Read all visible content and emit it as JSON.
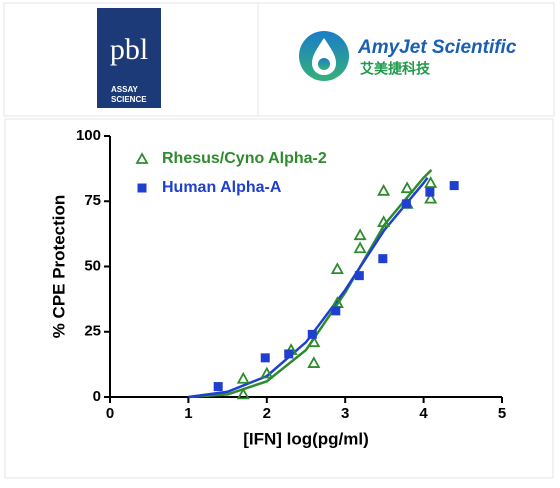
{
  "header": {
    "pbl_logo": {
      "name": "pbl",
      "lines": [
        "ASSAY",
        "SCIENCE"
      ]
    },
    "amyjet_logo": {
      "name": "AmyJet Scientific",
      "chinese": "艾美捷科技"
    }
  },
  "chart_data": {
    "type": "scatter",
    "xlabel": "[IFN] log(pg/ml)",
    "ylabel": "% CPE Protection",
    "xlim": [
      0,
      5
    ],
    "xticks": [
      0,
      1,
      2,
      3,
      4,
      5
    ],
    "ylim": [
      0,
      100
    ],
    "yticks": [
      0,
      25,
      50,
      75,
      100
    ],
    "legend": "upper left",
    "series": [
      {
        "name": "Rhesus/Cyno Alpha-2",
        "color": "#2e8b2e",
        "marker": "open-triangle",
        "x": [
          1.7,
          1.7,
          2.0,
          2.31,
          2.6,
          2.6,
          2.9,
          2.9,
          3.19,
          3.19,
          3.49,
          3.49,
          3.79,
          3.79,
          4.09,
          4.09
        ],
        "values": [
          1,
          7,
          9,
          18,
          13,
          21,
          36,
          49,
          62,
          57,
          79,
          67,
          80,
          74,
          76,
          82
        ]
      },
      {
        "name": "Human Alpha-A",
        "color": "#1f3fd0",
        "marker": "filled-square",
        "x": [
          1.38,
          1.98,
          2.28,
          2.58,
          2.88,
          3.18,
          3.48,
          3.78,
          4.08,
          4.39
        ],
        "values": [
          4,
          15,
          16.5,
          24,
          33,
          46.5,
          53,
          74,
          78.5,
          81
        ]
      }
    ],
    "curves": [
      {
        "color": "#2e8b2e",
        "x": [
          1.0,
          1.5,
          2.0,
          2.5,
          3.0,
          3.5,
          4.0,
          4.1
        ],
        "values": [
          0,
          1,
          6,
          18,
          40,
          66,
          84,
          87
        ]
      },
      {
        "color": "#1f3fd0",
        "x": [
          1.0,
          1.5,
          2.0,
          2.5,
          3.0,
          3.5,
          4.0,
          4.05
        ],
        "values": [
          0,
          2,
          8,
          21,
          41,
          64,
          82,
          84
        ]
      }
    ]
  }
}
